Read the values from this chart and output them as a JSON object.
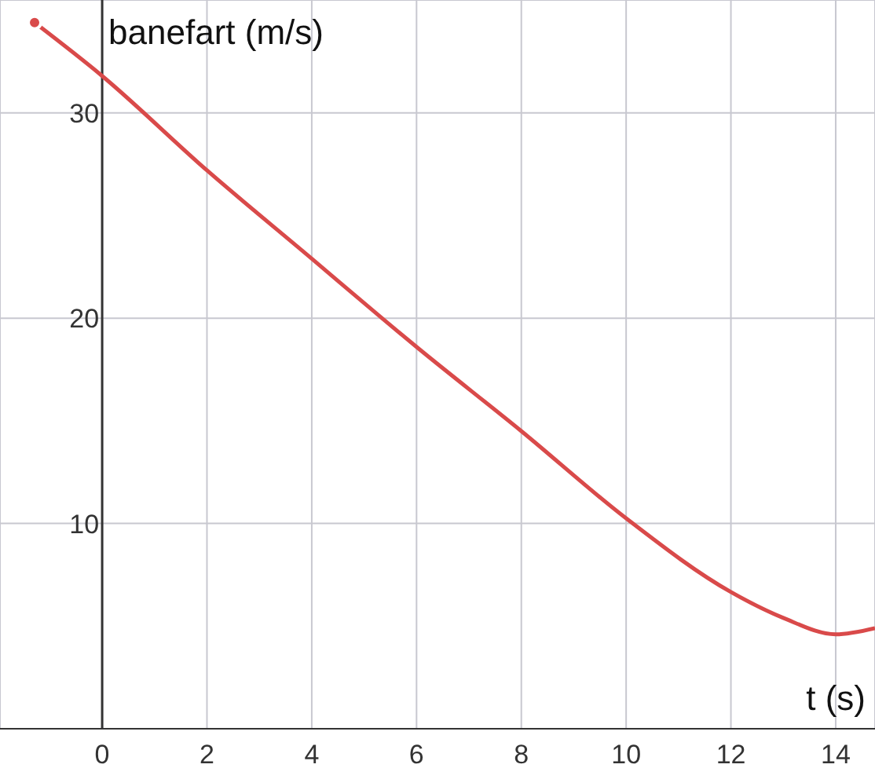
{
  "chart_data": {
    "type": "line",
    "xlabel": "t (s)",
    "ylabel": "banefart (m/s)",
    "x": [
      -1.29,
      0,
      2,
      4,
      5.34,
      6,
      8,
      10,
      12,
      13,
      14,
      14.75
    ],
    "series": [
      {
        "color": "#d94a4a",
        "values": [
          34.4,
          31.8,
          27.2,
          22.9,
          20,
          18.6,
          14.5,
          10.25,
          6.66,
          5.4,
          4.6,
          4.9
        ]
      }
    ],
    "xlim": [
      -1.95,
      14.75
    ],
    "ylim": [
      0,
      35.5
    ],
    "xticks": [
      0,
      2,
      4,
      6,
      8,
      10,
      12,
      14
    ],
    "yticks": [
      10,
      20,
      30
    ],
    "grid": true,
    "marker": "none",
    "line_style": "solid"
  }
}
